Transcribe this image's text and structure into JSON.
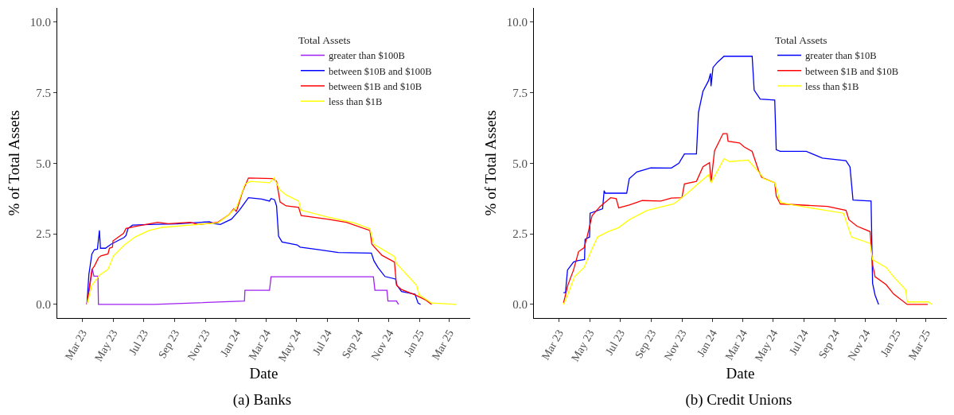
{
  "chart_data": [
    {
      "type": "line",
      "title": "(a) Banks",
      "xlabel": "Date",
      "ylabel": "% of Total Assets",
      "legend_title": "Total Assets",
      "legend": "top right",
      "grid": false,
      "marker": "none",
      "line_style": "solid",
      "xlim": [
        "2023-01-10",
        "2025-04-12"
      ],
      "ylim": [
        -0.48,
        10.5
      ],
      "xticks": [
        {
          "value": "2023-03-01",
          "label": "Mar 23"
        },
        {
          "value": "2023-05-01",
          "label": "May 23"
        },
        {
          "value": "2023-07-01",
          "label": "Jul 23"
        },
        {
          "value": "2023-09-01",
          "label": "Sep 23"
        },
        {
          "value": "2023-11-01",
          "label": "Nov 23"
        },
        {
          "value": "2024-01-01",
          "label": "Jan 24"
        },
        {
          "value": "2024-03-01",
          "label": "Mar 24"
        },
        {
          "value": "2024-05-01",
          "label": "May 24"
        },
        {
          "value": "2024-07-01",
          "label": "Jul 24"
        },
        {
          "value": "2024-09-01",
          "label": "Sep 24"
        },
        {
          "value": "2024-11-01",
          "label": "Nov 24"
        },
        {
          "value": "2025-01-01",
          "label": "Jan 25"
        },
        {
          "value": "2025-03-01",
          "label": "Mar 25"
        }
      ],
      "yticks": [
        {
          "value": 0,
          "label": "0.0"
        },
        {
          "value": 2.5,
          "label": "2.5"
        },
        {
          "value": 5,
          "label": "5.0"
        },
        {
          "value": 7.5,
          "label": "7.5"
        },
        {
          "value": 10,
          "label": "10.0"
        }
      ],
      "series": [
        {
          "name": "greater than $100B",
          "color": "#a020f0",
          "x": [
            "2023-03-10",
            "2023-03-21",
            "2023-03-24",
            "2023-04-01",
            "2023-04-02",
            "2023-07-23",
            "2024-01-18",
            "2024-01-19",
            "2024-03-08",
            "2024-03-11",
            "2024-10-01",
            "2024-10-04",
            "2024-10-28",
            "2024-10-30",
            "2024-11-16",
            "2024-11-20"
          ],
          "values": [
            0,
            1.25,
            1.0,
            1.0,
            0,
            0,
            0.12,
            0.5,
            0.5,
            0.98,
            0.98,
            0.5,
            0.5,
            0.12,
            0.12,
            0
          ]
        },
        {
          "name": "between $10B and $100B",
          "color": "#0000ff",
          "x": [
            "2023-03-10",
            "2023-03-14",
            "2023-03-20",
            "2023-03-25",
            "2023-03-31",
            "2023-04-04",
            "2023-04-06",
            "2023-04-16",
            "2023-04-27",
            "2023-05-13",
            "2023-05-23",
            "2023-05-27",
            "2023-05-31",
            "2023-06-09",
            "2023-07-12",
            "2023-09-05",
            "2023-11-09",
            "2023-11-20",
            "2023-12-01",
            "2023-12-23",
            "2024-01-08",
            "2024-01-26",
            "2024-02-21",
            "2024-03-08",
            "2024-03-11",
            "2024-03-18",
            "2024-03-22",
            "2024-03-26",
            "2024-04-02",
            "2024-05-02",
            "2024-05-08",
            "2024-06-15",
            "2024-07-23",
            "2024-09-27",
            "2024-10-02",
            "2024-10-10",
            "2024-10-24",
            "2024-11-14",
            "2024-11-17",
            "2024-11-26",
            "2024-12-23",
            "2024-12-29",
            "2025-01-03"
          ],
          "values": [
            0,
            1.07,
            1.79,
            1.94,
            1.96,
            2.62,
            1.99,
            1.99,
            2.13,
            2.28,
            2.37,
            2.44,
            2.69,
            2.81,
            2.83,
            2.85,
            2.93,
            2.86,
            2.83,
            3.02,
            3.34,
            3.78,
            3.73,
            3.66,
            3.75,
            3.71,
            3.49,
            2.42,
            2.21,
            2.11,
            2.03,
            1.94,
            1.84,
            1.82,
            1.55,
            1.31,
            0.99,
            0.9,
            0.68,
            0.46,
            0.36,
            0.05,
            0
          ]
        },
        {
          "name": "between $1B and $10B",
          "color": "#ff0000",
          "x": [
            "2023-03-10",
            "2023-03-20",
            "2023-03-25",
            "2023-04-02",
            "2023-04-07",
            "2023-04-21",
            "2023-04-24",
            "2023-04-30",
            "2023-05-01",
            "2023-05-22",
            "2023-05-27",
            "2023-06-14",
            "2023-07-29",
            "2023-08-19",
            "2023-10-02",
            "2023-10-18",
            "2023-11-26",
            "2023-12-18",
            "2023-12-28",
            "2024-01-02",
            "2024-01-14",
            "2024-01-26",
            "2024-03-14",
            "2024-03-22",
            "2024-03-29",
            "2024-04-10",
            "2024-05-05",
            "2024-05-10",
            "2024-07-01",
            "2024-08-08",
            "2024-09-24",
            "2024-09-28",
            "2024-10-18",
            "2024-11-12",
            "2024-11-16",
            "2024-11-26",
            "2024-12-23",
            "2025-01-14",
            "2025-01-25"
          ],
          "values": [
            0,
            1.24,
            1.36,
            1.65,
            1.72,
            1.79,
            1.99,
            2.03,
            2.25,
            2.52,
            2.69,
            2.76,
            2.91,
            2.86,
            2.91,
            2.83,
            2.91,
            3.18,
            3.39,
            3.29,
            3.99,
            4.48,
            4.46,
            4.36,
            3.63,
            3.49,
            3.44,
            3.15,
            3.02,
            2.91,
            2.62,
            2.13,
            1.74,
            1.5,
            0.68,
            0.53,
            0.34,
            0.15,
            0
          ]
        },
        {
          "name": "less than $1B",
          "color": "#ffff00",
          "x": [
            "2023-03-10",
            "2023-03-20",
            "2023-04-05",
            "2023-04-21",
            "2023-05-02",
            "2023-05-24",
            "2023-06-14",
            "2023-07-12",
            "2023-08-08",
            "2023-10-02",
            "2023-11-26",
            "2023-12-18",
            "2024-01-03",
            "2024-01-19",
            "2024-01-30",
            "2024-03-08",
            "2024-03-17",
            "2024-03-28",
            "2024-04-10",
            "2024-05-05",
            "2024-05-10",
            "2024-07-01",
            "2024-08-24",
            "2024-09-24",
            "2024-10-02",
            "2024-11-12",
            "2024-11-16",
            "2024-12-26",
            "2024-12-31",
            "2025-01-25",
            "2025-03-15"
          ],
          "values": [
            0,
            0.68,
            1.05,
            1.24,
            1.72,
            2.11,
            2.39,
            2.62,
            2.73,
            2.81,
            2.89,
            3.18,
            3.47,
            4.26,
            4.36,
            4.31,
            4.48,
            4.07,
            3.88,
            3.66,
            3.34,
            3.1,
            2.89,
            2.68,
            2.13,
            1.7,
            1.45,
            0.68,
            0.34,
            0.05,
            0
          ]
        }
      ]
    },
    {
      "type": "line",
      "title": "(b) Credit Unions",
      "xlabel": "Date",
      "ylabel": "% of Total Assets",
      "legend_title": "Total Assets",
      "legend": "top right",
      "grid": false,
      "marker": "none",
      "line_style": "solid",
      "xlim": [
        "2023-01-10",
        "2025-04-12"
      ],
      "ylim": [
        -0.48,
        10.5
      ],
      "xticks": [
        {
          "value": "2023-03-01",
          "label": "Mar 23"
        },
        {
          "value": "2023-05-01",
          "label": "May 23"
        },
        {
          "value": "2023-07-01",
          "label": "Jul 23"
        },
        {
          "value": "2023-09-01",
          "label": "Sep 23"
        },
        {
          "value": "2023-11-01",
          "label": "Nov 23"
        },
        {
          "value": "2024-01-01",
          "label": "Jan 24"
        },
        {
          "value": "2024-03-01",
          "label": "Mar 24"
        },
        {
          "value": "2024-05-01",
          "label": "May 24"
        },
        {
          "value": "2024-07-01",
          "label": "Jul 24"
        },
        {
          "value": "2024-09-01",
          "label": "Sep 24"
        },
        {
          "value": "2024-11-01",
          "label": "Nov 24"
        },
        {
          "value": "2025-01-01",
          "label": "Jan 25"
        },
        {
          "value": "2025-03-01",
          "label": "Mar 25"
        }
      ],
      "yticks": [
        {
          "value": 0,
          "label": "0.0"
        },
        {
          "value": 2.5,
          "label": "2.5"
        },
        {
          "value": 5,
          "label": "5.0"
        },
        {
          "value": 7.5,
          "label": "7.5"
        },
        {
          "value": 10,
          "label": "10.0"
        }
      ],
      "series": [
        {
          "name": "greater than $10B",
          "color": "#0000ff",
          "x": [
            "2023-03-10",
            "2023-03-14",
            "2023-03-18",
            "2023-03-30",
            "2023-04-07",
            "2023-04-21",
            "2023-04-22",
            "2023-05-01",
            "2023-05-02",
            "2023-05-27",
            "2023-05-30",
            "2023-06-01",
            "2023-07-14",
            "2023-07-19",
            "2023-08-03",
            "2023-08-31",
            "2023-10-11",
            "2023-10-26",
            "2023-11-06",
            "2023-11-30",
            "2023-12-04",
            "2023-12-13",
            "2023-12-24",
            "2023-12-28",
            "2023-12-29",
            "2024-01-02",
            "2024-01-11",
            "2024-01-24",
            "2024-03-20",
            "2024-03-24",
            "2024-04-05",
            "2024-05-04",
            "2024-05-07",
            "2024-05-15",
            "2024-07-06",
            "2024-08-07",
            "2024-09-23",
            "2024-10-01",
            "2024-10-07",
            "2024-11-12",
            "2024-11-15",
            "2024-11-20",
            "2024-11-27"
          ],
          "values": [
            0.42,
            0.42,
            1.22,
            1.5,
            1.55,
            1.59,
            2.3,
            2.39,
            3.23,
            3.39,
            4.03,
            3.94,
            3.94,
            4.45,
            4.69,
            4.84,
            4.83,
            5.0,
            5.33,
            5.33,
            6.8,
            7.55,
            7.92,
            8.18,
            7.73,
            8.39,
            8.58,
            8.79,
            8.79,
            7.59,
            7.27,
            7.24,
            5.48,
            5.42,
            5.42,
            5.18,
            5.09,
            4.87,
            3.7,
            3.66,
            0.75,
            0.33,
            0
          ]
        },
        {
          "name": "between $1B and $10B",
          "color": "#ff0000",
          "x": [
            "2023-03-10",
            "2023-03-19",
            "2023-03-30",
            "2023-04-09",
            "2023-04-20",
            "2023-04-26",
            "2023-05-06",
            "2023-05-22",
            "2023-06-12",
            "2023-06-23",
            "2023-06-28",
            "2023-07-19",
            "2023-08-14",
            "2023-09-20",
            "2023-10-11",
            "2023-11-01",
            "2023-11-06",
            "2023-11-30",
            "2023-12-13",
            "2023-12-26",
            "2023-12-29",
            "2024-01-05",
            "2024-01-22",
            "2024-01-30",
            "2024-02-01",
            "2024-02-24",
            "2024-03-04",
            "2024-03-20",
            "2024-04-02",
            "2024-04-08",
            "2024-05-04",
            "2024-05-07",
            "2024-05-15",
            "2024-08-17",
            "2024-09-23",
            "2024-09-29",
            "2024-10-15",
            "2024-11-10",
            "2024-11-15",
            "2024-11-20",
            "2024-12-12",
            "2024-12-27",
            "2025-01-23",
            "2025-03-05"
          ],
          "values": [
            0.05,
            0.7,
            1.22,
            1.87,
            2.01,
            2.39,
            3.14,
            3.47,
            3.78,
            3.75,
            3.42,
            3.52,
            3.68,
            3.66,
            3.77,
            3.78,
            4.27,
            4.36,
            4.88,
            5.02,
            4.31,
            5.44,
            6.05,
            6.05,
            5.78,
            5.72,
            5.58,
            5.42,
            4.73,
            4.5,
            4.31,
            3.84,
            3.56,
            3.47,
            3.33,
            3.0,
            2.77,
            2.58,
            1.41,
            0.98,
            0.7,
            0.37,
            0,
            0
          ]
        },
        {
          "name": "less than $1B",
          "color": "#ffff00",
          "x": [
            "2023-03-10",
            "2023-03-19",
            "2023-04-01",
            "2023-04-20",
            "2023-05-06",
            "2023-05-17",
            "2023-06-07",
            "2023-06-28",
            "2023-07-19",
            "2023-08-24",
            "2023-10-16",
            "2023-11-12",
            "2023-12-03",
            "2023-12-24",
            "2023-12-29",
            "2024-01-24",
            "2024-02-04",
            "2024-03-12",
            "2024-04-02",
            "2024-04-13",
            "2024-05-04",
            "2024-05-15",
            "2024-06-10",
            "2024-09-18",
            "2024-10-04",
            "2024-11-10",
            "2024-11-15",
            "2024-12-12",
            "2024-12-27",
            "2025-01-20",
            "2025-01-23",
            "2025-03-06",
            "2025-03-14"
          ],
          "values": [
            0,
            0.37,
            0.98,
            1.31,
            1.97,
            2.39,
            2.58,
            2.72,
            3.0,
            3.33,
            3.56,
            3.94,
            4.27,
            4.59,
            4.31,
            5.16,
            5.06,
            5.11,
            4.69,
            4.45,
            4.31,
            3.61,
            3.52,
            3.23,
            2.39,
            2.16,
            1.59,
            1.31,
            0.98,
            0.52,
            0.09,
            0.09,
            0
          ]
        }
      ]
    }
  ]
}
